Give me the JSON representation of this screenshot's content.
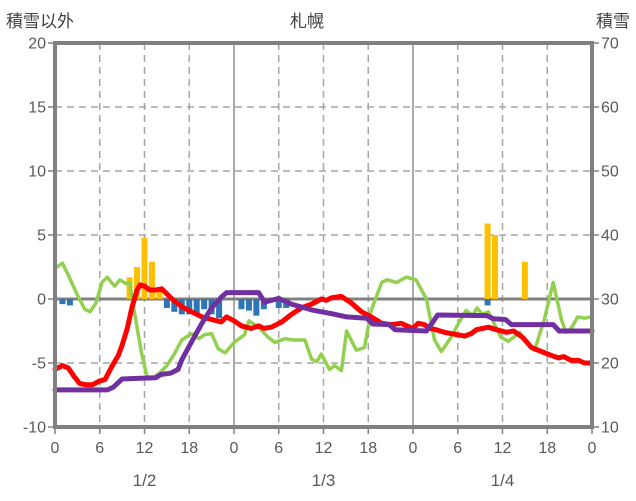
{
  "header": {
    "left_axis_title": "積雪以外",
    "chart_title": "札幌",
    "right_axis_title": "積雪"
  },
  "chart_data": {
    "type": "line",
    "title": "札幌",
    "grid": true,
    "legend": "none",
    "axis_color": "#808080",
    "grid_color": "#a6a6a6",
    "text_color": "#595959",
    "x_axis": {
      "unit": "hour",
      "range": [
        0,
        72
      ],
      "tick_interval": 6,
      "tick_labels": [
        "0",
        "6",
        "12",
        "18",
        "0",
        "6",
        "12",
        "18",
        "0",
        "6",
        "12",
        "18",
        "0"
      ],
      "date_labels": [
        {
          "label": "1/2",
          "hour": 12
        },
        {
          "label": "1/3",
          "hour": 36
        },
        {
          "label": "1/4",
          "hour": 60
        }
      ]
    },
    "left_axis": {
      "title": "積雪以外",
      "min": -10,
      "max": 20,
      "tick_interval": 5,
      "ticks": [
        20,
        15,
        10,
        5,
        0,
        -5,
        -10
      ],
      "tick_labels": [
        "20",
        "15",
        "10",
        "5",
        "0",
        "-5",
        "-10"
      ]
    },
    "right_axis": {
      "title": "積雪",
      "min": 10,
      "max": 70,
      "tick_interval": 10,
      "ticks": [
        70,
        60,
        50,
        40,
        30,
        20,
        10
      ],
      "tick_labels": [
        "70",
        "60",
        "50",
        "40",
        "30",
        "20",
        "10"
      ]
    },
    "series": [
      {
        "name": "blue-bars",
        "type": "bar",
        "axis": "left",
        "color": "#2e75b6",
        "points": [
          [
            1,
            -0.4
          ],
          [
            2,
            -0.5
          ],
          [
            15,
            -0.7
          ],
          [
            16,
            -1.0
          ],
          [
            17,
            -1.2
          ],
          [
            18,
            -1.2
          ],
          [
            19,
            -1.2
          ],
          [
            20,
            -0.8
          ],
          [
            21,
            -1.2
          ],
          [
            22,
            -1.5
          ],
          [
            25,
            -0.8
          ],
          [
            26,
            -0.9
          ],
          [
            27,
            -1.3
          ],
          [
            28,
            -0.8
          ],
          [
            30,
            -0.7
          ],
          [
            31,
            -0.7
          ],
          [
            58,
            -0.5
          ]
        ]
      },
      {
        "name": "orange-bars",
        "type": "bar",
        "axis": "left",
        "color": "#ffc000",
        "points": [
          [
            10,
            1.7
          ],
          [
            11,
            2.5
          ],
          [
            12,
            4.8
          ],
          [
            13,
            2.9
          ],
          [
            14,
            0.7
          ],
          [
            58,
            5.9
          ],
          [
            59,
            5.0
          ],
          [
            63,
            2.9
          ]
        ]
      },
      {
        "name": "green-line",
        "type": "line",
        "axis": "left",
        "color": "#92d050",
        "width": 3.5,
        "points": [
          [
            0,
            2.4
          ],
          [
            1,
            2.8
          ],
          [
            2,
            1.6
          ],
          [
            3,
            0.3
          ],
          [
            4,
            -0.8
          ],
          [
            4.7,
            -1.0
          ],
          [
            5.5,
            -0.3
          ],
          [
            6.3,
            1.3
          ],
          [
            7,
            1.7
          ],
          [
            8,
            1.0
          ],
          [
            8.7,
            1.5
          ],
          [
            9.5,
            1.2
          ],
          [
            10,
            1.3
          ],
          [
            10.5,
            -0.5
          ],
          [
            11,
            -2.2
          ],
          [
            11.6,
            -4.2
          ],
          [
            12.3,
            -6.0
          ],
          [
            13,
            -6.2
          ],
          [
            14,
            -5.8
          ],
          [
            15,
            -5.2
          ],
          [
            16,
            -4.3
          ],
          [
            17,
            -3.2
          ],
          [
            18.3,
            -2.7
          ],
          [
            19.3,
            -3.1
          ],
          [
            20,
            -2.8
          ],
          [
            21,
            -2.7
          ],
          [
            21.9,
            -3.9
          ],
          [
            22.8,
            -4.2
          ],
          [
            24,
            -3.4
          ],
          [
            25.4,
            -2.8
          ],
          [
            26,
            -1.7
          ],
          [
            27.3,
            -2.2
          ],
          [
            28.6,
            -3.0
          ],
          [
            29.5,
            -3.4
          ],
          [
            30.8,
            -3.1
          ],
          [
            32,
            -3.2
          ],
          [
            33.5,
            -3.2
          ],
          [
            34.4,
            -4.7
          ],
          [
            35.1,
            -4.9
          ],
          [
            35.7,
            -4.3
          ],
          [
            36.8,
            -5.5
          ],
          [
            37.5,
            -5.2
          ],
          [
            38.4,
            -5.6
          ],
          [
            39.1,
            -2.5
          ],
          [
            40.4,
            -4.0
          ],
          [
            41.5,
            -3.8
          ],
          [
            42.4,
            -0.9
          ],
          [
            43.8,
            1.3
          ],
          [
            44.5,
            1.5
          ],
          [
            45.8,
            1.3
          ],
          [
            47.1,
            1.7
          ],
          [
            48.4,
            1.5
          ],
          [
            49.8,
            0.0
          ],
          [
            50.9,
            -3.2
          ],
          [
            51.8,
            -4.1
          ],
          [
            53.1,
            -3.0
          ],
          [
            54,
            -2.0
          ],
          [
            55.1,
            -0.9
          ],
          [
            56,
            -1.3
          ],
          [
            56.6,
            -0.7
          ],
          [
            57.3,
            -1.2
          ],
          [
            58.1,
            -1.0
          ],
          [
            59.8,
            -3.0
          ],
          [
            60.8,
            -3.3
          ],
          [
            62.3,
            -2.6
          ],
          [
            63.5,
            -3.6
          ],
          [
            64.3,
            -4.0
          ],
          [
            65.6,
            -1.6
          ],
          [
            66.8,
            1.3
          ],
          [
            67.9,
            -1.6
          ],
          [
            68.5,
            -2.6
          ],
          [
            69.2,
            -2.3
          ],
          [
            70.1,
            -1.4
          ],
          [
            71,
            -1.5
          ],
          [
            72,
            -1.4
          ]
        ]
      },
      {
        "name": "red-line",
        "type": "line",
        "axis": "left",
        "color": "#ff0000",
        "width": 5,
        "points": [
          [
            0,
            -5.5
          ],
          [
            1,
            -5.2
          ],
          [
            1.8,
            -5.4
          ],
          [
            2.5,
            -6.0
          ],
          [
            3.3,
            -6.6
          ],
          [
            4.2,
            -6.7
          ],
          [
            5,
            -6.7
          ],
          [
            6,
            -6.4
          ],
          [
            6.7,
            -6.3
          ],
          [
            7.6,
            -5.3
          ],
          [
            8.5,
            -4.4
          ],
          [
            9,
            -3.6
          ],
          [
            9.7,
            -2.3
          ],
          [
            10.3,
            -0.7
          ],
          [
            11,
            0.7
          ],
          [
            11.4,
            1.1
          ],
          [
            12,
            1.0
          ],
          [
            12.7,
            0.7
          ],
          [
            13.5,
            0.7
          ],
          [
            14.3,
            0.8
          ],
          [
            15,
            0.4
          ],
          [
            15.7,
            0.0
          ],
          [
            17,
            -0.6
          ],
          [
            18.3,
            -1.0
          ],
          [
            19.7,
            -1.4
          ],
          [
            21,
            -1.6
          ],
          [
            22.3,
            -1.8
          ],
          [
            23,
            -1.4
          ],
          [
            24,
            -1.7
          ],
          [
            25,
            -2.1
          ],
          [
            26.3,
            -2.3
          ],
          [
            27.3,
            -2.1
          ],
          [
            28,
            -2.3
          ],
          [
            29,
            -2.2
          ],
          [
            30.4,
            -1.8
          ],
          [
            31.7,
            -1.2
          ],
          [
            33,
            -0.7
          ],
          [
            34.4,
            -0.4
          ],
          [
            35.7,
            0.0
          ],
          [
            36.4,
            -0.1
          ],
          [
            37.1,
            0.1
          ],
          [
            38.4,
            0.2
          ],
          [
            39.7,
            -0.3
          ],
          [
            41.1,
            -1.0
          ],
          [
            42.4,
            -1.4
          ],
          [
            43.8,
            -1.9
          ],
          [
            45.1,
            -2.0
          ],
          [
            46.4,
            -1.9
          ],
          [
            47.2,
            -2.1
          ],
          [
            48,
            -2.3
          ],
          [
            48.7,
            -1.9
          ],
          [
            49.5,
            -2.0
          ],
          [
            50.3,
            -2.3
          ],
          [
            51.1,
            -2.4
          ],
          [
            52.2,
            -2.6
          ],
          [
            53.1,
            -2.7
          ],
          [
            54.9,
            -2.9
          ],
          [
            55.8,
            -2.7
          ],
          [
            56.5,
            -2.4
          ],
          [
            58.1,
            -2.2
          ],
          [
            59.2,
            -2.4
          ],
          [
            60.5,
            -2.6
          ],
          [
            61.5,
            -2.5
          ],
          [
            62.7,
            -3.0
          ],
          [
            63.9,
            -3.8
          ],
          [
            65.2,
            -4.1
          ],
          [
            66.5,
            -4.4
          ],
          [
            67.5,
            -4.6
          ],
          [
            68.2,
            -4.5
          ],
          [
            69.2,
            -4.8
          ],
          [
            70.2,
            -4.8
          ],
          [
            71,
            -5.0
          ],
          [
            72,
            -5.0
          ]
        ]
      },
      {
        "name": "purple-line",
        "type": "line",
        "axis": "right",
        "color": "#7030a0",
        "width": 5,
        "points": [
          [
            0,
            15.8
          ],
          [
            7,
            15.8
          ],
          [
            7.8,
            16.2
          ],
          [
            9,
            17.5
          ],
          [
            13.5,
            17.7
          ],
          [
            14.2,
            18.2
          ],
          [
            15.5,
            18.4
          ],
          [
            16.5,
            19.0
          ],
          [
            17,
            20.5
          ],
          [
            18.3,
            23.3
          ],
          [
            19.7,
            26.2
          ],
          [
            21,
            28.6
          ],
          [
            22.3,
            30.3
          ],
          [
            23,
            31.0
          ],
          [
            27.3,
            31.0
          ],
          [
            28.1,
            29.5
          ],
          [
            29,
            29.8
          ],
          [
            30,
            30.1
          ],
          [
            31.7,
            29.2
          ],
          [
            34.4,
            28.3
          ],
          [
            37.1,
            27.7
          ],
          [
            39.1,
            27.2
          ],
          [
            41.8,
            27.0
          ],
          [
            42.6,
            26.1
          ],
          [
            44.8,
            26.0
          ],
          [
            45.6,
            25.2
          ],
          [
            49.8,
            25.0
          ],
          [
            50.6,
            26.3
          ],
          [
            51.3,
            27.5
          ],
          [
            57.9,
            27.4
          ],
          [
            58.8,
            26.9
          ],
          [
            60.4,
            26.8
          ],
          [
            61.2,
            26.0
          ],
          [
            66.8,
            26.0
          ],
          [
            67.6,
            25.0
          ],
          [
            72,
            25.0
          ]
        ]
      }
    ]
  }
}
